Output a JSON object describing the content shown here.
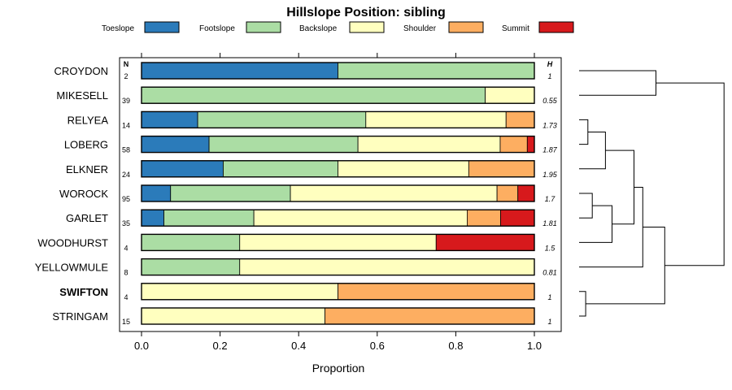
{
  "chart_data": {
    "type": "bar",
    "stacked": true,
    "orientation": "horizontal",
    "title": "Hillslope Position: sibling",
    "xlabel": "Proportion",
    "ylabel": "",
    "xlim": [
      0,
      1
    ],
    "xticks": [
      "0.0",
      "0.2",
      "0.4",
      "0.6",
      "0.8",
      "1.0"
    ],
    "xtick_values": [
      0,
      0.2,
      0.4,
      0.6,
      0.8,
      1.0
    ],
    "n_header": "N",
    "h_header": "H",
    "highlight": "SWIFTON",
    "legend": [
      {
        "name": "Toeslope",
        "color": "#2b7bba"
      },
      {
        "name": "Footslope",
        "color": "#abdda4"
      },
      {
        "name": "Backslope",
        "color": "#ffffbf"
      },
      {
        "name": "Shoulder",
        "color": "#fdae61"
      },
      {
        "name": "Summit",
        "color": "#d7191c"
      }
    ],
    "rows": [
      {
        "label": "CROYDON",
        "n": "2",
        "h": "1",
        "values": [
          0.5,
          0.5,
          0,
          0,
          0
        ]
      },
      {
        "label": "MIKESELL",
        "n": "39",
        "h": "0.55",
        "values": [
          0,
          0.875,
          0.125,
          0,
          0
        ]
      },
      {
        "label": "RELYEA",
        "n": "14",
        "h": "1.73",
        "values": [
          0.143,
          0.428,
          0.357,
          0.072,
          0
        ]
      },
      {
        "label": "LOBERG",
        "n": "58",
        "h": "1.87",
        "values": [
          0.172,
          0.379,
          0.362,
          0.069,
          0.018
        ]
      },
      {
        "label": "ELKNER",
        "n": "24",
        "h": "1.95",
        "values": [
          0.208,
          0.292,
          0.333,
          0.167,
          0
        ]
      },
      {
        "label": "WOROCK",
        "n": "95",
        "h": "1.7",
        "values": [
          0.074,
          0.305,
          0.526,
          0.053,
          0.042
        ]
      },
      {
        "label": "GARLET",
        "n": "35",
        "h": "1.81",
        "values": [
          0.057,
          0.229,
          0.543,
          0.085,
          0.086
        ]
      },
      {
        "label": "WOODHURST",
        "n": "4",
        "h": "1.5",
        "values": [
          0,
          0.25,
          0.5,
          0,
          0.25
        ]
      },
      {
        "label": "YELLOWMULE",
        "n": "8",
        "h": "0.81",
        "values": [
          0,
          0.25,
          0.75,
          0,
          0
        ]
      },
      {
        "label": "SWIFTON",
        "n": "4",
        "h": "1",
        "values": [
          0,
          0,
          0.5,
          0.5,
          0
        ]
      },
      {
        "label": "STRINGAM",
        "n": "15",
        "h": "1",
        "values": [
          0,
          0,
          0.467,
          0.533,
          0
        ]
      }
    ],
    "dendrogram": {
      "type": "hierarchical-clustering",
      "merges": [
        {
          "left": "CROYDON",
          "right": "MIKESELL",
          "height": 0.35
        },
        {
          "left": "RELYEA",
          "right": "LOBERG",
          "height": 0.04
        },
        {
          "left": "RELYEA+LOBERG",
          "right": "ELKNER",
          "height": 0.12
        },
        {
          "left": "WOROCK",
          "right": "GARLET",
          "height": 0.06
        },
        {
          "left": "WOROCK+GARLET",
          "right": "WOODHURST",
          "height": 0.15
        },
        {
          "left": "RELYEA+LOBERG+ELKNER",
          "right": "WOROCK+GARLET+WOODHURST",
          "height": 0.25
        },
        {
          "left": "SWIFTON",
          "right": "STRINGAM",
          "height": 0.03
        },
        {
          "left": "RELYEA..WOODHURST",
          "right": "YELLOWMULE",
          "height": 0.29
        },
        {
          "left": "RELYEA..YELLOWMULE",
          "right": "SWIFTON+STRINGAM",
          "height": 0.39
        },
        {
          "left": "CROYDON+MIKESELL",
          "right": "RELYEA..STRINGAM",
          "height": 0.66
        }
      ]
    }
  }
}
